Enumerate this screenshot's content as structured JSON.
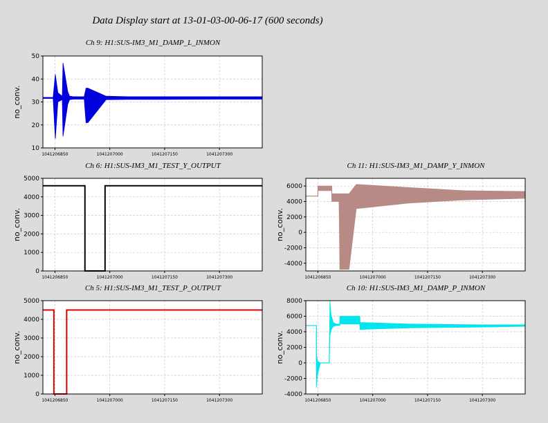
{
  "page_title": "Data Display start at 13-01-03-00-06-17 (600 seconds)",
  "chart_data": [
    {
      "type": "line",
      "title": "Ch 9: H1:SUS-IM3_M1_DAMP_L_INMON",
      "xlabel": "",
      "ylabel": "no_conv.",
      "ylim": [
        10,
        50
      ],
      "yticks": [
        10,
        20,
        30,
        40,
        50
      ],
      "xlim": [
        1041206817,
        1041207417
      ],
      "xticks": [
        1041206850,
        1041207000,
        1041207150,
        1041207300
      ],
      "grid": true,
      "color": "#0000dd",
      "series": [
        {
          "kind": "envelope",
          "x": [
            1041206817,
            1041206845,
            1041206851,
            1041206858,
            1041206870,
            1041206872,
            1041206885,
            1041206890,
            1041206900,
            1041206930,
            1041206935,
            1041206940,
            1041206990,
            1041207050,
            1041207150,
            1041207300,
            1041207417
          ],
          "upper": [
            32,
            32,
            42,
            34,
            32.5,
            47,
            34.5,
            32.5,
            32.3,
            32.3,
            36,
            36,
            32.5,
            32.3,
            32.3,
            32.3,
            32.3
          ],
          "lower": [
            31.5,
            31.5,
            14,
            30,
            31,
            15,
            29,
            31,
            31.2,
            31.2,
            21,
            21,
            31,
            31.1,
            31.1,
            31.2,
            31.2
          ]
        }
      ]
    },
    {
      "type": "line",
      "title": "Ch 6: H1:SUS-IM3_M1_TEST_Y_OUTPUT",
      "xlabel": "",
      "ylabel": "no_conv.",
      "ylim": [
        0,
        5000
      ],
      "yticks": [
        0,
        1000,
        2000,
        3000,
        4000,
        5000
      ],
      "xlim": [
        1041206817,
        1041207417
      ],
      "xticks": [
        1041206850,
        1041207000,
        1041207150,
        1041207300
      ],
      "grid": true,
      "color": "#000000",
      "series": [
        {
          "kind": "step",
          "x": [
            1041206817,
            1041206932,
            1041206932,
            1041206987,
            1041206987,
            1041207417
          ],
          "y": [
            4600,
            4600,
            0,
            0,
            4600,
            4600
          ]
        }
      ]
    },
    {
      "type": "line",
      "title": "Ch 5: H1:SUS-IM3_M1_TEST_P_OUTPUT",
      "xlabel": "",
      "ylabel": "no_conv.",
      "ylim": [
        0,
        5000
      ],
      "yticks": [
        0,
        1000,
        2000,
        3000,
        4000,
        5000
      ],
      "xlim": [
        1041206817,
        1041207417
      ],
      "xticks": [
        1041206850,
        1041207000,
        1041207150,
        1041207300
      ],
      "grid": true,
      "color": "#dd0000",
      "series": [
        {
          "kind": "step",
          "x": [
            1041206817,
            1041206847,
            1041206847,
            1041206882,
            1041206882,
            1041207417
          ],
          "y": [
            4500,
            4500,
            0,
            0,
            4500,
            4500
          ]
        }
      ]
    },
    {
      "type": "line",
      "title": "Ch 11: H1:SUS-IM3_M1_DAMP_Y_INMON",
      "xlabel": "",
      "ylabel": "no_conv.",
      "ylim": [
        -5000,
        7000
      ],
      "yticks": [
        -4000,
        -2000,
        0,
        2000,
        4000,
        6000
      ],
      "xlim": [
        1041206817,
        1041207417
      ],
      "xticks": [
        1041206850,
        1041207000,
        1041207150,
        1041207300
      ],
      "grid": true,
      "color": "#b88a85",
      "series": [
        {
          "kind": "envelope",
          "x": [
            1041206817,
            1041206850,
            1041206850,
            1041206888,
            1041206888,
            1041206908,
            1041206910,
            1041206935,
            1041206955,
            1041206960,
            1041207100,
            1041207250,
            1041207417
          ],
          "upper": [
            4700,
            4700,
            6000,
            6000,
            5000,
            5000,
            5000,
            5000,
            6200,
            6200,
            5800,
            5400,
            5300
          ],
          "lower": [
            4700,
            4700,
            5400,
            5400,
            4000,
            4000,
            -4800,
            -4800,
            3100,
            3100,
            3800,
            4200,
            4400
          ]
        }
      ]
    },
    {
      "type": "line",
      "title": "Ch 10: H1:SUS-IM3_M1_DAMP_P_INMON",
      "xlabel": "",
      "ylabel": "no_conv.",
      "ylim": [
        -4000,
        8000
      ],
      "yticks": [
        -4000,
        -2000,
        0,
        2000,
        4000,
        6000,
        8000
      ],
      "xlim": [
        1041206817,
        1041207417
      ],
      "xticks": [
        1041206850,
        1041207000,
        1041207150,
        1041207300
      ],
      "grid": true,
      "color": "#00e5ee",
      "series": [
        {
          "kind": "envelope",
          "x": [
            1041206817,
            1041206846,
            1041206846,
            1041206849,
            1041206856,
            1041206856,
            1041206881,
            1041206883,
            1041206886,
            1041206892,
            1041206900,
            1041206910,
            1041206910,
            1041206965,
            1041206965,
            1041207100,
            1041207300,
            1041207417
          ],
          "upper": [
            4800,
            4800,
            1200,
            200,
            0,
            0,
            0,
            8000,
            6200,
            5200,
            5000,
            5000,
            6000,
            6000,
            5200,
            5000,
            4900,
            4900
          ],
          "lower": [
            4800,
            4800,
            -3200,
            -1500,
            -200,
            0,
            0,
            3500,
            4200,
            4700,
            4800,
            4800,
            5000,
            5000,
            4300,
            4500,
            4600,
            4700
          ]
        }
      ]
    }
  ]
}
